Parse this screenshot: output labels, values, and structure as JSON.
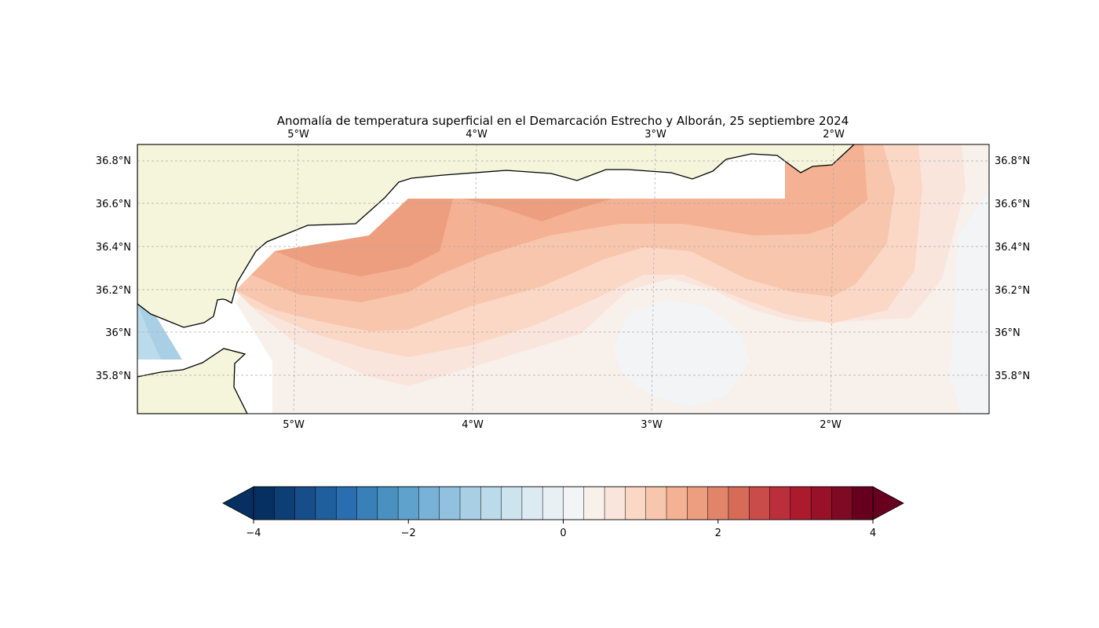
{
  "title": "Anomalía de temperatura superficial en el Demarcación Estrecho y Alborán, 25 septiembre 2024",
  "map": {
    "lon_labels": [
      "5°W",
      "4°W",
      "3°W",
      "2°W"
    ],
    "lat_labels": [
      "36.8°N",
      "36.6°N",
      "36.4°N",
      "36.2°N",
      "36°N",
      "35.8°N"
    ],
    "land_color": "#f5f5dc",
    "coastline_color": "#000000",
    "gridlines": "dashed grey"
  },
  "colorbar": {
    "cmap": "RdBu_r",
    "range": [
      -4,
      4
    ],
    "step": 0.25,
    "extend": "both",
    "tick_labels": [
      "−4",
      "−2",
      "0",
      "2",
      "4"
    ],
    "colors": [
      "#053061",
      "#0d3e75",
      "#174e89",
      "#1f5f9d",
      "#296eb0",
      "#3980b9",
      "#4a91c2",
      "#5fa2cb",
      "#78b2d6",
      "#91c1de",
      "#a9cfe5",
      "#bbdaea",
      "#cde4ef",
      "#dceaf2",
      "#e8f0f4",
      "#f2f4f6",
      "#f8f0eb",
      "#fae5dc",
      "#fbd8c6",
      "#f8c6ac",
      "#f4b193",
      "#ec9e7e",
      "#e1846a",
      "#d66b58",
      "#c94b4a",
      "#bb2e3b",
      "#ac1a2e",
      "#971128",
      "#7f0a24",
      "#67001f"
    ],
    "under_color": "#053061",
    "over_color": "#67001f"
  },
  "chart_data": {
    "type": "heatmap",
    "title": "Anomalía de temperatura superficial en el Demarcación Estrecho y Alborán, 25 septiembre 2024",
    "variable_unit": "",
    "x_label": "",
    "y_label": "",
    "lon_range": [
      -5.88,
      -1.12
    ],
    "lat_range": [
      35.62,
      36.88
    ],
    "lon_ticks": [
      -5,
      -4,
      -3,
      -2
    ],
    "lat_ticks": [
      35.8,
      36.0,
      36.2,
      36.4,
      36.6,
      36.8
    ],
    "value_range": [
      -4,
      4
    ],
    "approx_values": [
      {
        "region": "northern band near Spanish coast, 4.4°W to 3.5°W",
        "lon": -4.0,
        "lat": 36.55,
        "value": 1.6
      },
      {
        "region": "central-north",
        "lon": -3.0,
        "lat": 36.5,
        "value": 1.2
      },
      {
        "region": "east near 2°W, 36.6°N",
        "lon": -2.0,
        "lat": 36.6,
        "value": 1.0
      },
      {
        "region": "central channel",
        "lon": -3.5,
        "lat": 36.2,
        "value": 0.6
      },
      {
        "region": "southern part",
        "lon": -4.0,
        "lat": 35.8,
        "value": 0.3
      },
      {
        "region": "eastern Alborán gyre",
        "lon": -2.9,
        "lat": 35.9,
        "value": -0.1
      },
      {
        "region": "Atlantic side near Strait",
        "lon": -5.75,
        "lat": 36.0,
        "value": -1.2
      },
      {
        "region": "eastern edge",
        "lon": -1.2,
        "lat": 36.0,
        "value": -0.1
      }
    ]
  }
}
